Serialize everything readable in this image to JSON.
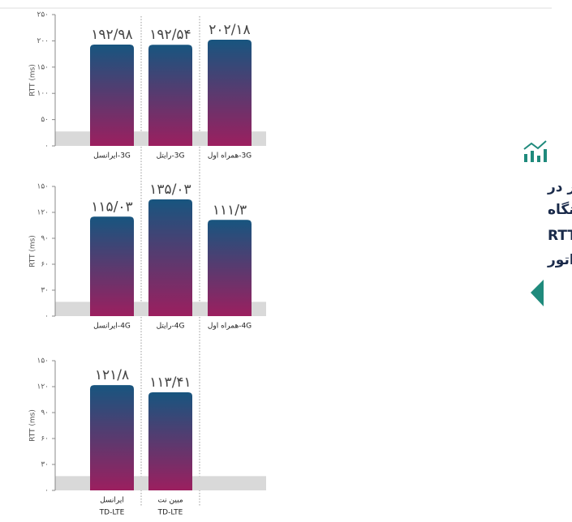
{
  "heading": {
    "lines": [
      "وضعیت کلی کشور در",
      "یک نگاه",
      "به ازای پارامتر RTT",
      "به تفکیک اپراتور"
    ]
  },
  "chart_data": [
    {
      "type": "bar",
      "ylabel": "RTT (ms)",
      "categories": [
        [
          "3G-ایرانسل"
        ],
        [
          "3G-رایتل"
        ],
        [
          "3G-همراه اول"
        ]
      ],
      "values": [
        192.98,
        192.54,
        202.18
      ],
      "value_labels": [
        "۱۹۲/۹۸",
        "۱۹۲/۵۴",
        "۲۰۲/۱۸"
      ],
      "colors": [
        "#17557f",
        "#9c1f5f"
      ],
      "ylim": [
        0,
        250
      ],
      "yticks": [
        {
          "value": 0,
          "label": "۰"
        },
        {
          "value": 50,
          "label": "۵۰"
        },
        {
          "value": 100,
          "label": "۱۰۰"
        },
        {
          "value": 150,
          "label": "۱۵۰"
        },
        {
          "value": 200,
          "label": "۲۰۰"
        },
        {
          "value": 250,
          "label": "۲۵۰"
        }
      ]
    },
    {
      "type": "bar",
      "ylabel": "RTT (ms)",
      "categories": [
        [
          "4G-ایرانسل"
        ],
        [
          "4G-رایتل"
        ],
        [
          "4G-همراه اول"
        ]
      ],
      "values": [
        115.03,
        135.03,
        111.3
      ],
      "value_labels": [
        "۱۱۵/۰۳",
        "۱۳۵/۰۳",
        "۱۱۱/۳"
      ],
      "colors": [
        "#17557f",
        "#9c1f5f"
      ],
      "ylim": [
        0,
        150
      ],
      "yticks": [
        {
          "value": 0,
          "label": "۰"
        },
        {
          "value": 30,
          "label": "۳۰"
        },
        {
          "value": 60,
          "label": "۶۰"
        },
        {
          "value": 90,
          "label": "۹۰"
        },
        {
          "value": 120,
          "label": "۱۲۰"
        },
        {
          "value": 150,
          "label": "۱۵۰"
        }
      ]
    },
    {
      "type": "bar",
      "ylabel": "RTT (ms)",
      "categories": [
        [
          "ایرانسل",
          "TD-LTE"
        ],
        [
          "مبین نت",
          "TD-LTE"
        ]
      ],
      "values": [
        121.8,
        113.41
      ],
      "value_labels": [
        "۱۲۱/۸",
        "۱۱۳/۴۱"
      ],
      "colors": [
        "#17557f",
        "#9c1f5f"
      ],
      "ylim": [
        0,
        150
      ],
      "yticks": [
        {
          "value": 0,
          "label": "۰"
        },
        {
          "value": 30,
          "label": "۳۰"
        },
        {
          "value": 60,
          "label": "۶۰"
        },
        {
          "value": 90,
          "label": "۹۰"
        },
        {
          "value": 120,
          "label": "۱۲۰"
        },
        {
          "value": 150,
          "label": "۱۵۰"
        }
      ]
    }
  ]
}
